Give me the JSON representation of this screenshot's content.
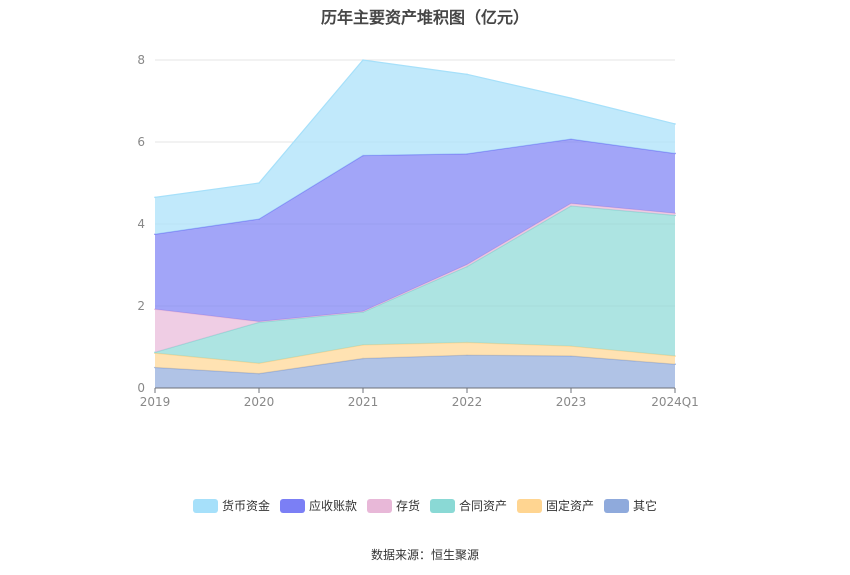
{
  "page": {
    "title": "历年主要资产堆积图（亿元）",
    "source": "数据来源：恒生聚源"
  },
  "chart_data": {
    "type": "area",
    "stacked": true,
    "title": "历年主要资产堆积图（亿元）",
    "categories": [
      "2019",
      "2020",
      "2021",
      "2022",
      "2023",
      "2024Q1"
    ],
    "ylim": [
      0,
      8
    ],
    "yticks": [
      0,
      2,
      4,
      6,
      8
    ],
    "grid": true,
    "legend_position": "bottom",
    "series": [
      {
        "name": "其它",
        "color": "#8faadc",
        "values": [
          0.5,
          0.35,
          0.72,
          0.8,
          0.78,
          0.58
        ]
      },
      {
        "name": "固定资产",
        "color": "#ffd591",
        "values": [
          0.35,
          0.25,
          0.33,
          0.31,
          0.24,
          0.2
        ]
      },
      {
        "name": "合同资产",
        "color": "#8ad9d5",
        "values": [
          0.02,
          1.0,
          0.8,
          1.85,
          3.42,
          3.43
        ]
      },
      {
        "name": "存货",
        "color": "#e8b8d8",
        "values": [
          1.05,
          0.02,
          0.02,
          0.05,
          0.06,
          0.05
        ]
      },
      {
        "name": "应收账款",
        "color": "#7b7ff5",
        "values": [
          1.83,
          2.5,
          3.8,
          2.7,
          1.57,
          1.46
        ]
      },
      {
        "name": "货币资金",
        "color": "#a6e0fa",
        "values": [
          0.9,
          0.88,
          2.33,
          1.94,
          1.0,
          0.72
        ]
      }
    ]
  }
}
